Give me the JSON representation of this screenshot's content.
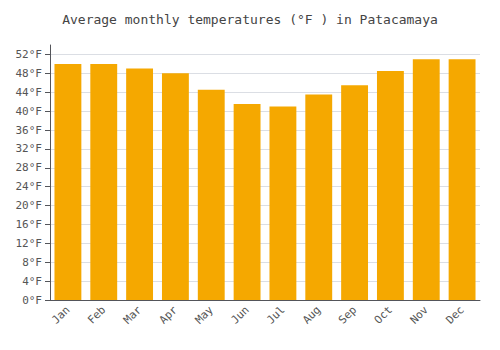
{
  "chart_data": {
    "type": "bar",
    "title": "Average monthly temperatures (°F ) in Patacamaya",
    "categories": [
      "Jan",
      "Feb",
      "Mar",
      "Apr",
      "May",
      "Jun",
      "Jul",
      "Aug",
      "Sep",
      "Oct",
      "Nov",
      "Dec"
    ],
    "values": [
      50.0,
      50.0,
      49.0,
      48.0,
      44.5,
      41.5,
      41.0,
      43.5,
      45.5,
      48.5,
      51.0,
      51.0
    ],
    "color": "#F5A800",
    "ylim": [
      0,
      54
    ],
    "yticks": [
      {
        "value": 0,
        "label": "0°F"
      },
      {
        "value": 4,
        "label": "4°F"
      },
      {
        "value": 8,
        "label": "8°F"
      },
      {
        "value": 12,
        "label": "12°F"
      },
      {
        "value": 16,
        "label": "16°F"
      },
      {
        "value": 20,
        "label": "20°F"
      },
      {
        "value": 24,
        "label": "24°F"
      },
      {
        "value": 28,
        "label": "28°F"
      },
      {
        "value": 32,
        "label": "32°F"
      },
      {
        "value": 36,
        "label": "36°F"
      },
      {
        "value": 40,
        "label": "40°F"
      },
      {
        "value": 44,
        "label": "44°F"
      },
      {
        "value": 48,
        "label": "48°F"
      },
      {
        "value": 52,
        "label": "52°F"
      }
    ],
    "grid": true
  }
}
